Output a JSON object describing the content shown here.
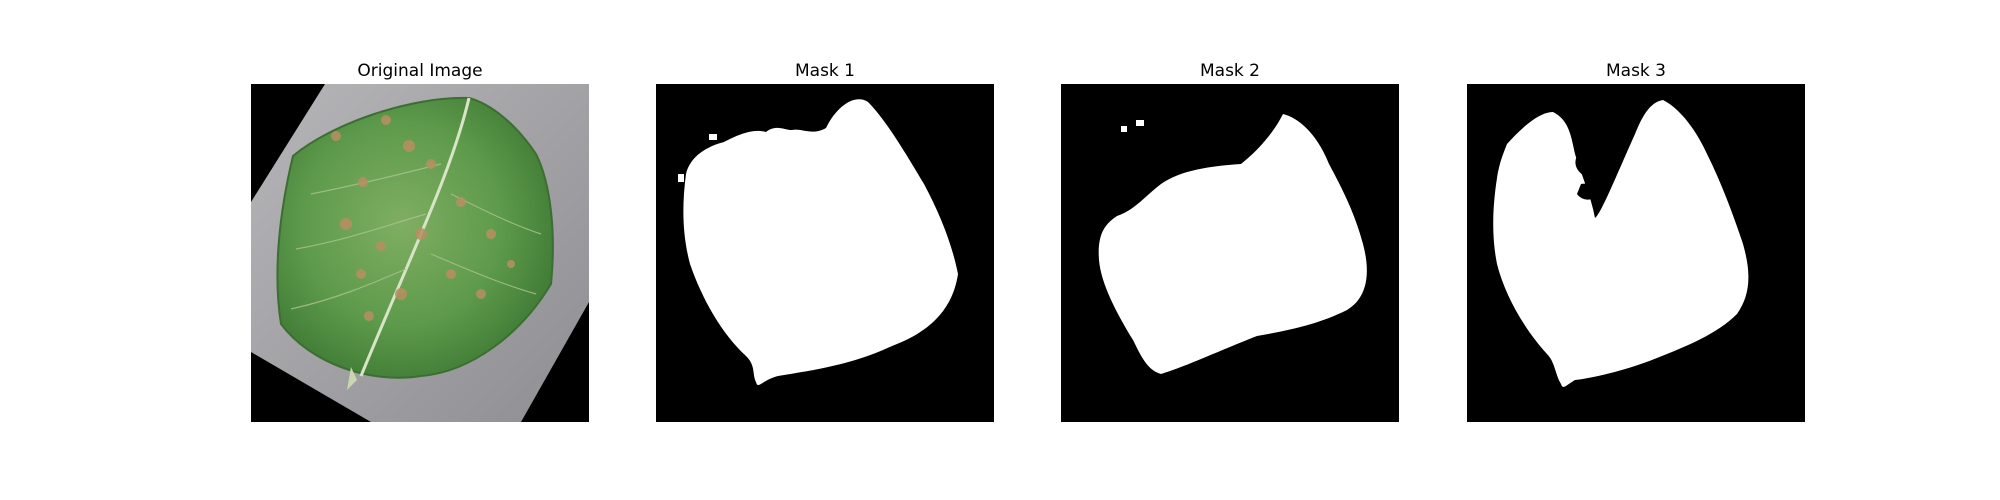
{
  "figure": {
    "panels": [
      {
        "title": "Original Image"
      },
      {
        "title": "Mask 1"
      },
      {
        "title": "Mask 2"
      },
      {
        "title": "Mask 3"
      }
    ]
  },
  "colors": {
    "background": "#ffffff",
    "mask_background": "#000000",
    "mask_foreground": "#ffffff",
    "original_background": "#000000",
    "paper": "#a9a8aa",
    "leaf": "#5c9a4a",
    "leaf_spots": "#b98f62"
  }
}
